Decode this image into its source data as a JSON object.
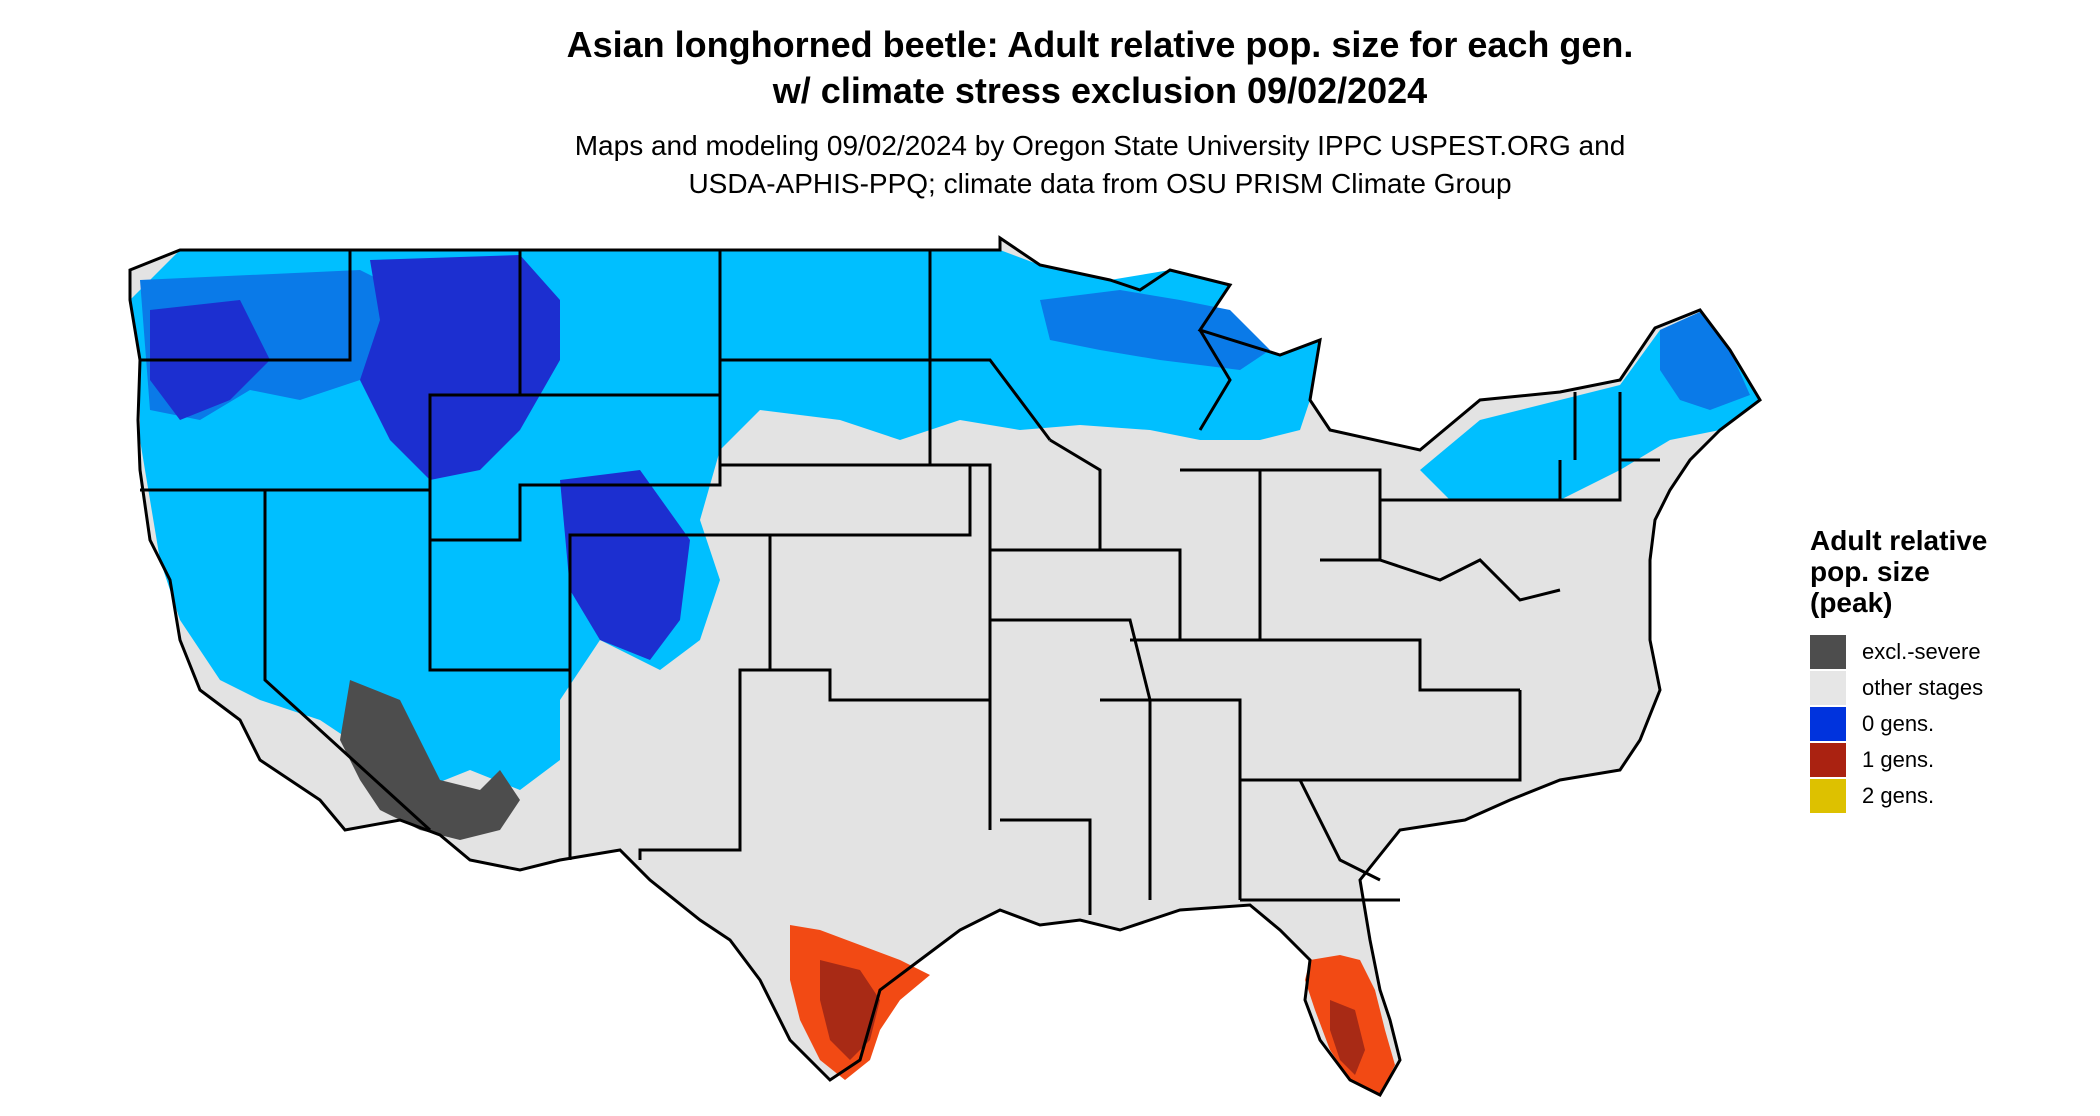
{
  "header": {
    "title_line1": "Asian longhorned beetle: Adult relative pop. size for each gen.",
    "title_line2": "w/ climate stress exclusion 09/02/2024",
    "subtitle_line1": "Maps and modeling 09/02/2024 by Oregon State University IPPC USPEST.ORG and",
    "subtitle_line2": "USDA-APHIS-PPQ; climate data from OSU PRISM Climate Group"
  },
  "legend": {
    "title_line1": "Adult relative",
    "title_line2": "pop. size",
    "title_line3": "(peak)",
    "items": [
      {
        "label": "excl.-severe",
        "color": "#4d4d4d"
      },
      {
        "label": "other stages",
        "color": "#e6e6e6"
      },
      {
        "label": "0 gens.",
        "color": "#0033dd"
      },
      {
        "label": "1 gens.",
        "color": "#aa2211"
      },
      {
        "label": "2 gens.",
        "color": "#ddc100"
      }
    ]
  },
  "map_colors": {
    "land": "#e3e3e3",
    "light_blue": "#00bfff",
    "medium_blue": "#0a7ae8",
    "dark_blue": "#1c2fd0",
    "excluded": "#4d4d4d",
    "orange": "#f24a14",
    "dark_red": "#a82a15",
    "border": "#000000"
  }
}
